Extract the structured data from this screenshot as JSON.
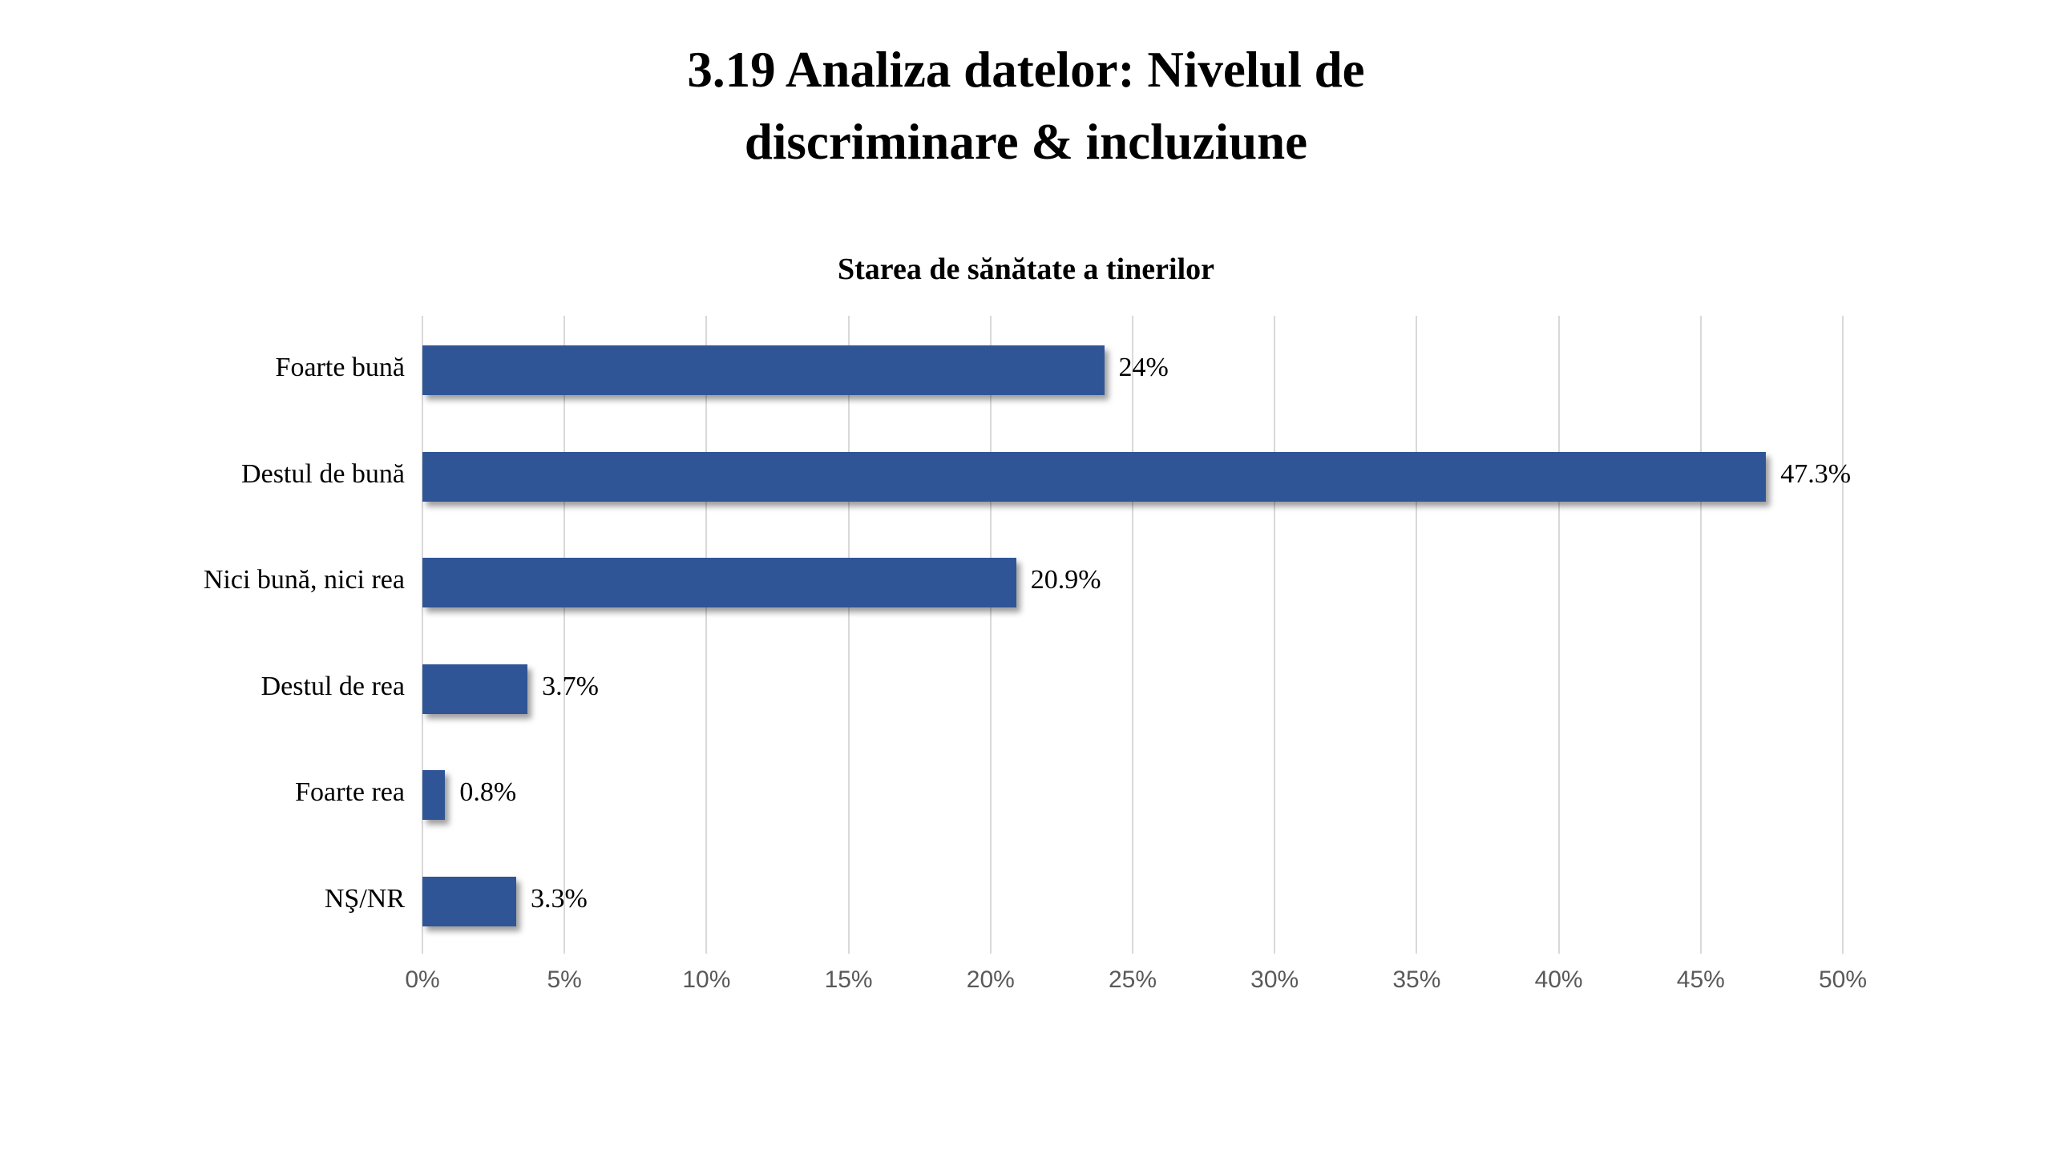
{
  "header": {
    "title_line1": "3.19 Analiza datelor: Nivelul de",
    "title_line2": "discriminare & incluziune"
  },
  "chart_data": {
    "type": "bar",
    "orientation": "horizontal",
    "title": "3.19 Analiza datelor: Nivelul de discriminare & incluziune",
    "subtitle": "Starea de sănătate a tinerilor",
    "categories": [
      "Foarte bună",
      "Destul de bună",
      "Nici bună, nici rea",
      "Destul de rea",
      "Foarte rea",
      "NŞ/NR"
    ],
    "values": [
      24,
      47.3,
      20.9,
      3.7,
      0.8,
      3.3
    ],
    "data_labels": [
      "24%",
      "47.3%",
      "20.9%",
      "3.7%",
      "0.8%",
      "3.3%"
    ],
    "x_ticks": [
      "0%",
      "5%",
      "10%",
      "15%",
      "20%",
      "25%",
      "30%",
      "35%",
      "40%",
      "45%",
      "50%"
    ],
    "xlim": [
      0,
      50
    ],
    "grid": true,
    "legend": false,
    "bar_color": "#2f5597",
    "gridline_color": "#d9d9d9",
    "axis_label_color": "#595959",
    "text_color": "#000000"
  }
}
